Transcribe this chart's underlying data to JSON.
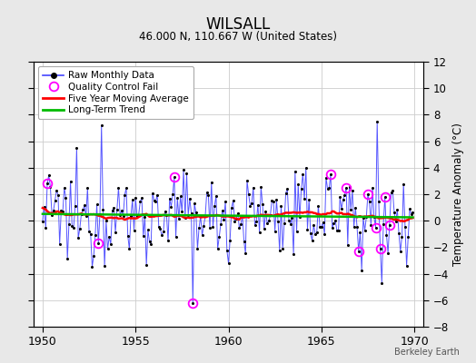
{
  "title": "WILSALL",
  "subtitle": "46.000 N, 110.667 W (United States)",
  "ylabel": "Temperature Anomaly (°C)",
  "credit": "Berkeley Earth",
  "xlim": [
    1949.5,
    1970.5
  ],
  "ylim": [
    -8,
    12
  ],
  "yticks": [
    -8,
    -6,
    -4,
    -2,
    0,
    2,
    4,
    6,
    8,
    10,
    12
  ],
  "xticks": [
    1950,
    1955,
    1960,
    1965,
    1970
  ],
  "bg_color": "#e8e8e8",
  "plot_bg_color": "#ffffff",
  "raw_line_color": "#4444ff",
  "raw_marker_color": "#000000",
  "moving_avg_color": "#ff0000",
  "trend_color": "#00bb00",
  "qc_fail_color": "#ff00ff",
  "seed": 12345,
  "n_months": 240,
  "start_year": 1950,
  "qc_fail_indices": [
    3,
    36,
    85,
    97,
    186,
    196,
    204,
    210,
    215,
    218,
    221,
    224
  ],
  "trend_slope": 0.0008,
  "trend_intercept": 0.3
}
